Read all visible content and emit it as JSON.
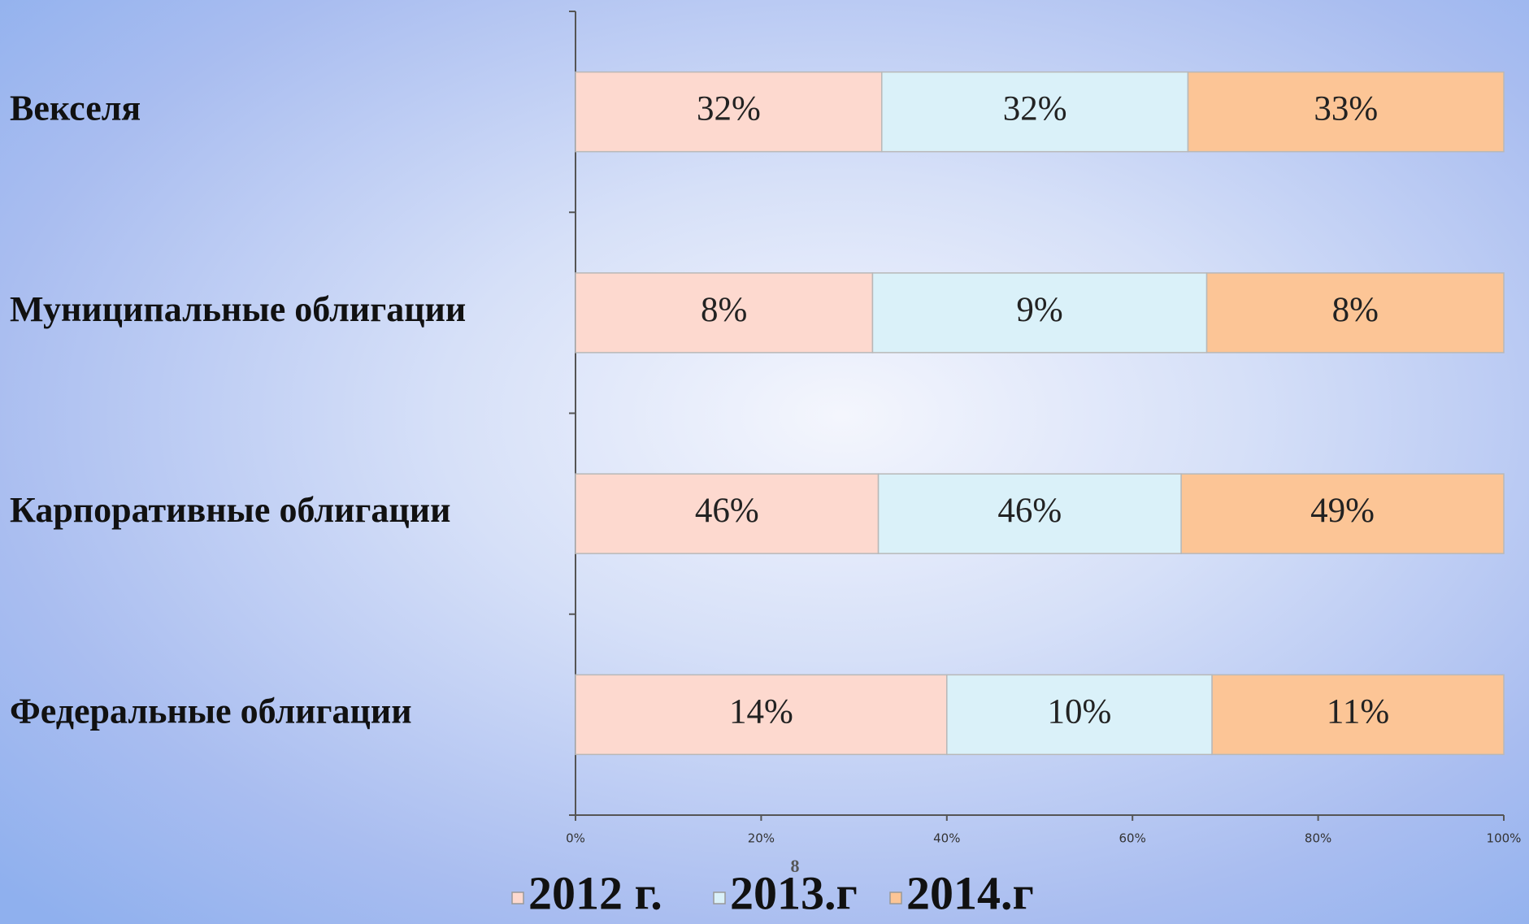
{
  "chart_data": {
    "type": "bar",
    "orientation": "horizontal",
    "stacking": "percent",
    "page_number": "8",
    "categories": [
      "Векселя",
      "Муниципальные облигации",
      "Карпоративные облигации",
      "Федеральные облигации"
    ],
    "series": [
      {
        "name": "2012 г.",
        "color": "#fdd9cf",
        "values": [
          32,
          8,
          46,
          14
        ],
        "value_labels": [
          "32%",
          "8%",
          "46%",
          "14%"
        ]
      },
      {
        "name": "2013.г",
        "color": "#daf1f9",
        "values": [
          32,
          9,
          46,
          10
        ],
        "value_labels": [
          "32%",
          "9%",
          "46%",
          "10%"
        ]
      },
      {
        "name": "2014.г",
        "color": "#fcc596",
        "values": [
          33,
          8,
          49,
          11
        ],
        "value_labels": [
          "33%",
          "8%",
          "49%",
          "11%"
        ]
      }
    ],
    "xlim": [
      0,
      100
    ],
    "xticks": [
      {
        "value": 0,
        "label": "0%"
      },
      {
        "value": 20,
        "label": "20%"
      },
      {
        "value": 40,
        "label": "40%"
      },
      {
        "value": 60,
        "label": "60%"
      },
      {
        "value": 80,
        "label": "80%"
      },
      {
        "value": 100,
        "label": "100%"
      }
    ],
    "legend": "bottom"
  }
}
